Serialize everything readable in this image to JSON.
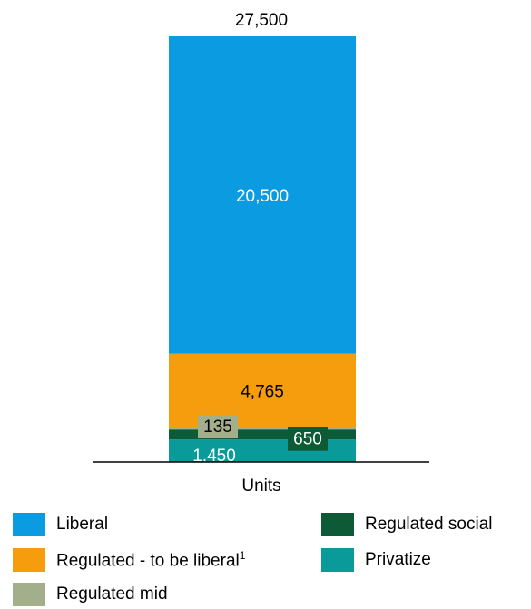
{
  "chart_data": {
    "type": "bar",
    "stacked": true,
    "categories": [
      "Units"
    ],
    "total": "27,500",
    "series": [
      {
        "name": "Privatize",
        "value": 1450,
        "label": "1,450",
        "color": "#0a9a9a",
        "label_color": "#ffffff"
      },
      {
        "name": "Regulated social",
        "value": 650,
        "label": "650",
        "color": "#0d5a36",
        "label_color": "#ffffff"
      },
      {
        "name": "Regulated mid",
        "value": 135,
        "label": "135",
        "color": "#a3ae8b",
        "label_color": "#000000"
      },
      {
        "name": "Regulated - to be liberal",
        "value": 4765,
        "label": "4,765",
        "color": "#f59d0c",
        "label_color": "#000000"
      },
      {
        "name": "Liberal",
        "value": 20500,
        "label": "20,500",
        "color": "#0a9be0",
        "label_color": "#ffffff"
      }
    ],
    "legend": [
      {
        "name": "Liberal",
        "color": "#0a9be0"
      },
      {
        "name": "Regulated social",
        "color": "#0d5a36"
      },
      {
        "name": "Regulated - to be liberal",
        "sup": "1",
        "color": "#f59d0c"
      },
      {
        "name": "Privatize",
        "color": "#0a9a9a"
      },
      {
        "name": "Regulated mid",
        "color": "#a3ae8b"
      }
    ]
  }
}
